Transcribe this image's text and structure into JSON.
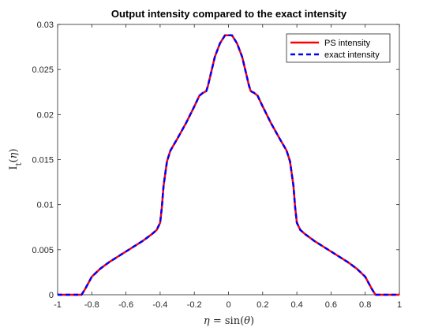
{
  "chart_data": {
    "type": "line",
    "title": "Output intensity compared to the exact intensity",
    "xlabel_parts": [
      "η",
      " = sin(",
      "θ",
      ")"
    ],
    "ylabel_parts": [
      "I",
      "t",
      "(",
      "η",
      ")"
    ],
    "xlim": [
      -1,
      1
    ],
    "ylim": [
      0,
      0.03
    ],
    "x_ticks": [
      -1,
      -0.8,
      -0.6,
      -0.4,
      -0.2,
      0,
      0.2,
      0.4,
      0.6,
      0.8,
      1
    ],
    "x_tick_labels": [
      "-1",
      "-0.8",
      "-0.6",
      "-0.4",
      "-0.2",
      "0",
      "0.2",
      "0.4",
      "0.6",
      "0.8",
      "1"
    ],
    "y_ticks": [
      0,
      0.005,
      0.01,
      0.015,
      0.02,
      0.025,
      0.03
    ],
    "y_tick_labels": [
      "0",
      "0.005",
      "0.01",
      "0.015",
      "0.02",
      "0.025",
      "0.03"
    ],
    "grid": false,
    "legend_position": "top-right",
    "x": [
      -1.0,
      -0.86,
      -0.84,
      -0.82,
      -0.8,
      -0.75,
      -0.7,
      -0.6,
      -0.5,
      -0.45,
      -0.42,
      -0.4,
      -0.39,
      -0.38,
      -0.36,
      -0.34,
      -0.3,
      -0.25,
      -0.2,
      -0.17,
      -0.15,
      -0.13,
      -0.12,
      -0.1,
      -0.08,
      -0.05,
      -0.02,
      0.0,
      0.02,
      0.05,
      0.08,
      0.1,
      0.12,
      0.13,
      0.15,
      0.17,
      0.2,
      0.25,
      0.3,
      0.34,
      0.36,
      0.38,
      0.39,
      0.4,
      0.42,
      0.45,
      0.5,
      0.6,
      0.7,
      0.75,
      0.8,
      0.82,
      0.84,
      0.86,
      1.0
    ],
    "series": [
      {
        "name": "PS intensity",
        "color": "#ff0000",
        "style": "solid",
        "values": [
          0.0,
          0.0,
          0.0006,
          0.0013,
          0.002,
          0.0029,
          0.0036,
          0.0048,
          0.006,
          0.0067,
          0.0072,
          0.008,
          0.0097,
          0.0121,
          0.0148,
          0.016,
          0.0173,
          0.019,
          0.0209,
          0.0221,
          0.0224,
          0.0226,
          0.0232,
          0.0248,
          0.0264,
          0.0279,
          0.0288,
          0.0288,
          0.0288,
          0.0279,
          0.0264,
          0.0248,
          0.0232,
          0.0226,
          0.0224,
          0.0221,
          0.0209,
          0.019,
          0.0173,
          0.016,
          0.0148,
          0.0121,
          0.0097,
          0.008,
          0.0072,
          0.0067,
          0.006,
          0.0048,
          0.0036,
          0.0029,
          0.002,
          0.0013,
          0.0006,
          0.0,
          0.0
        ]
      },
      {
        "name": "exact intensity",
        "color": "#0000ff",
        "style": "dashed",
        "values": [
          0.0,
          0.0,
          0.0006,
          0.0013,
          0.002,
          0.0029,
          0.0036,
          0.0048,
          0.006,
          0.0067,
          0.0072,
          0.008,
          0.0097,
          0.0121,
          0.0148,
          0.016,
          0.0173,
          0.019,
          0.0209,
          0.0221,
          0.0224,
          0.0226,
          0.0232,
          0.0248,
          0.0264,
          0.0279,
          0.0288,
          0.0288,
          0.0288,
          0.0279,
          0.0264,
          0.0248,
          0.0232,
          0.0226,
          0.0224,
          0.0221,
          0.0209,
          0.019,
          0.0173,
          0.016,
          0.0148,
          0.0121,
          0.0097,
          0.008,
          0.0072,
          0.0067,
          0.006,
          0.0048,
          0.0036,
          0.0029,
          0.002,
          0.0013,
          0.0006,
          0.0,
          0.0
        ]
      }
    ]
  }
}
